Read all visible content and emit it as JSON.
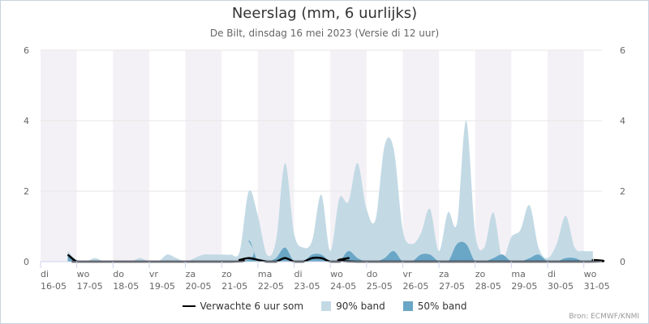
{
  "title": "Neerslag (mm, 6 uurlijks)",
  "subtitle": "De Bilt, dinsdag 16 mei 2023 (Versie di 12 uur)",
  "source": "Bron: ECMWF/KNMI",
  "legend": {
    "line": "Verwachte 6 uur som",
    "band90": "90% band",
    "band50": "50% band"
  },
  "colors": {
    "band90": "#c3dae5",
    "band50": "#6aa6c6",
    "line": "#000000",
    "stripe": "#f4f1f6",
    "grid": "#e6e6e6"
  },
  "chart_data": {
    "type": "area",
    "x_unit": "day index from 16-05 00:00 (step 0.25 = 6 hours)",
    "ylim": [
      0,
      6
    ],
    "yticks": [
      0,
      2,
      4,
      6
    ],
    "days": [
      {
        "dow": "di",
        "date": "16-05"
      },
      {
        "dow": "wo",
        "date": "17-05"
      },
      {
        "dow": "do",
        "date": "18-05"
      },
      {
        "dow": "vr",
        "date": "19-05"
      },
      {
        "dow": "za",
        "date": "20-05"
      },
      {
        "dow": "zo",
        "date": "21-05"
      },
      {
        "dow": "ma",
        "date": "22-05"
      },
      {
        "dow": "di",
        "date": "23-05"
      },
      {
        "dow": "wo",
        "date": "24-05"
      },
      {
        "dow": "do",
        "date": "25-05"
      },
      {
        "dow": "vr",
        "date": "26-05"
      },
      {
        "dow": "za",
        "date": "27-05"
      },
      {
        "dow": "zo",
        "date": "28-05"
      },
      {
        "dow": "ma",
        "date": "29-05"
      },
      {
        "dow": "di",
        "date": "30-05"
      },
      {
        "dow": "wo",
        "date": "31-05"
      }
    ],
    "series": [
      {
        "name": "90% band",
        "points": [
          [
            0.75,
            0.3
          ],
          [
            1.0,
            0.05
          ],
          [
            1.25,
            0.0
          ],
          [
            1.5,
            0.1
          ],
          [
            1.75,
            0.0
          ],
          [
            2.0,
            0.0
          ],
          [
            2.25,
            0.0
          ],
          [
            2.5,
            0.0
          ],
          [
            2.75,
            0.1
          ],
          [
            3.0,
            0.0
          ],
          [
            3.25,
            0.0
          ],
          [
            3.5,
            0.2
          ],
          [
            3.75,
            0.1
          ],
          [
            4.0,
            0.0
          ],
          [
            4.25,
            0.1
          ],
          [
            4.5,
            0.2
          ],
          [
            4.75,
            0.2
          ],
          [
            5.0,
            0.2
          ],
          [
            5.25,
            0.2
          ],
          [
            5.5,
            0.3
          ],
          [
            5.75,
            2.0
          ],
          [
            6.0,
            1.3
          ],
          [
            6.25,
            0.2
          ],
          [
            6.5,
            0.6
          ],
          [
            6.75,
            2.8
          ],
          [
            7.0,
            0.8
          ],
          [
            7.25,
            0.4
          ],
          [
            7.5,
            0.6
          ],
          [
            7.75,
            1.9
          ],
          [
            8.0,
            0.3
          ],
          [
            8.25,
            1.8
          ],
          [
            8.5,
            1.7
          ],
          [
            8.75,
            2.8
          ],
          [
            9.0,
            1.5
          ],
          [
            9.25,
            1.2
          ],
          [
            9.5,
            3.3
          ],
          [
            9.75,
            3.2
          ],
          [
            10.0,
            0.9
          ],
          [
            10.25,
            0.5
          ],
          [
            10.5,
            0.8
          ],
          [
            10.75,
            1.5
          ],
          [
            11.0,
            0.3
          ],
          [
            11.25,
            1.4
          ],
          [
            11.5,
            1.1
          ],
          [
            11.75,
            4.0
          ],
          [
            12.0,
            0.8
          ],
          [
            12.25,
            0.4
          ],
          [
            12.5,
            1.4
          ],
          [
            12.75,
            0.1
          ],
          [
            13.0,
            0.7
          ],
          [
            13.25,
            0.9
          ],
          [
            13.5,
            1.6
          ],
          [
            13.75,
            0.4
          ],
          [
            14.0,
            0.1
          ],
          [
            14.25,
            0.5
          ],
          [
            14.5,
            1.3
          ],
          [
            14.75,
            0.4
          ],
          [
            15.0,
            0.3
          ],
          [
            15.25,
            0.3
          ]
        ]
      },
      {
        "name": "50% band",
        "points": [
          [
            0.75,
            0.2
          ],
          [
            1.0,
            0.0
          ],
          [
            1.25,
            0.0
          ],
          [
            5.5,
            0.0
          ],
          [
            5.75,
            0.6
          ],
          [
            6.0,
            0.0
          ],
          [
            6.25,
            0.0
          ],
          [
            6.5,
            0.1
          ],
          [
            6.75,
            0.4
          ],
          [
            7.0,
            0.0
          ],
          [
            7.25,
            0.0
          ],
          [
            7.5,
            0.2
          ],
          [
            7.75,
            0.2
          ],
          [
            8.0,
            0.0
          ],
          [
            8.25,
            0.0
          ],
          [
            8.5,
            0.3
          ],
          [
            8.75,
            0.1
          ],
          [
            9.0,
            0.0
          ],
          [
            9.25,
            0.0
          ],
          [
            9.5,
            0.1
          ],
          [
            9.75,
            0.3
          ],
          [
            10.0,
            0.0
          ],
          [
            10.25,
            0.0
          ],
          [
            10.5,
            0.2
          ],
          [
            10.75,
            0.2
          ],
          [
            11.0,
            0.0
          ],
          [
            11.25,
            0.0
          ],
          [
            11.5,
            0.5
          ],
          [
            11.75,
            0.5
          ],
          [
            12.0,
            0.0
          ],
          [
            12.25,
            0.0
          ],
          [
            12.5,
            0.1
          ],
          [
            12.75,
            0.2
          ],
          [
            13.0,
            0.0
          ],
          [
            13.25,
            0.0
          ],
          [
            13.5,
            0.1
          ],
          [
            13.75,
            0.2
          ],
          [
            14.0,
            0.0
          ],
          [
            14.25,
            0.0
          ],
          [
            14.5,
            0.1
          ],
          [
            14.75,
            0.1
          ],
          [
            15.0,
            0.0
          ],
          [
            15.25,
            0.05
          ]
        ]
      },
      {
        "name": "Verwachte 6 uur som",
        "points": [
          [
            0.75,
            0.2
          ],
          [
            1.0,
            0.0
          ],
          [
            1.25,
            0.0
          ],
          [
            5.25,
            0.0
          ],
          [
            5.5,
            0.05
          ],
          [
            5.75,
            0.1
          ],
          [
            6.0,
            0.05
          ],
          [
            6.25,
            0.0
          ],
          [
            6.5,
            0.0
          ],
          [
            6.75,
            0.1
          ],
          [
            7.0,
            0.0
          ],
          [
            7.25,
            0.0
          ],
          [
            7.5,
            0.1
          ],
          [
            7.75,
            0.1
          ],
          [
            8.0,
            0.0
          ],
          [
            8.25,
            0.0
          ],
          [
            8.5,
            0.1
          ],
          [
            8.75,
            0.0
          ],
          [
            15.0,
            0.0
          ],
          [
            15.25,
            0.05
          ]
        ]
      }
    ]
  }
}
